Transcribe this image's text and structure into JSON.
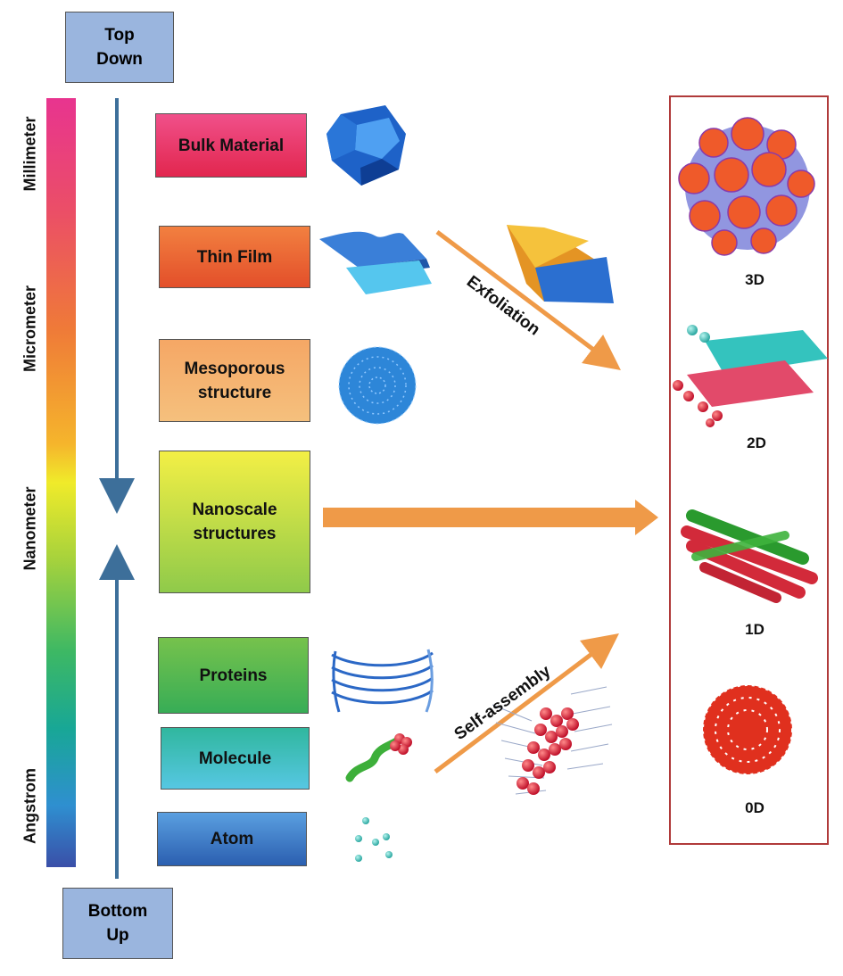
{
  "approaches": {
    "top": "Top\nDown",
    "bottom": "Bottom\nUp"
  },
  "scale_labels": [
    "Millimeter",
    "Micrometer",
    "Nanometer",
    "Angstrom"
  ],
  "structures": [
    {
      "label": "Bulk Material",
      "color_top": "#f0508a",
      "color_bottom": "#e2264e"
    },
    {
      "label": "Thin Film",
      "color_top": "#f28040",
      "color_bottom": "#e34f2a"
    },
    {
      "label": "Mesoporous\nstructure",
      "color_top": "#f5a765",
      "color_bottom": "#f5c07d"
    },
    {
      "label": "Nanoscale\nstructures",
      "color_top": "#f3ef45",
      "color_bottom": "#8fca4a"
    },
    {
      "label": "Proteins",
      "color_top": "#76c24c",
      "color_bottom": "#37ad56"
    },
    {
      "label": "Molecule",
      "color_top": "#30b79e",
      "color_bottom": "#56c7e2"
    },
    {
      "label": "Atom",
      "color_top": "#5a9fe0",
      "color_bottom": "#2b5fb0"
    }
  ],
  "processes": {
    "exfoliation": "Exfoliation",
    "self_assembly": "Self-assembly"
  },
  "dimensions": [
    "3D",
    "2D",
    "1D",
    "0D"
  ],
  "colors": {
    "arrow": "#ef9a48",
    "vertical_arrow": "#3d6f9a",
    "panel_border": "#b03a3a"
  }
}
